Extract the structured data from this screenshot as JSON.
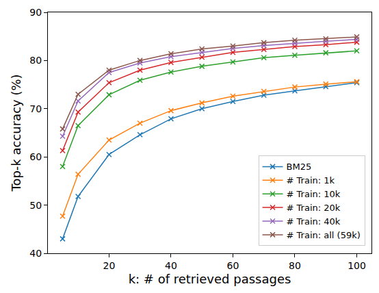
{
  "chart_data": {
    "type": "line",
    "x_label": "k: # of retrieved passages",
    "y_label": "Top-k accuracy (%)",
    "x": [
      5,
      10,
      20,
      30,
      40,
      50,
      60,
      70,
      80,
      90,
      100
    ],
    "series": [
      {
        "name": "BM25",
        "color": "#1f77b4",
        "values": [
          43.0,
          51.8,
          60.5,
          64.6,
          67.9,
          70.0,
          71.5,
          72.8,
          73.7,
          74.6,
          75.4
        ]
      },
      {
        "name": "# Train: 1k",
        "color": "#ff7f0e",
        "values": [
          47.7,
          56.4,
          63.5,
          67.0,
          69.6,
          71.2,
          72.6,
          73.6,
          74.5,
          75.1,
          75.6
        ]
      },
      {
        "name": "# Train: 10k",
        "color": "#2ca02c",
        "values": [
          58.0,
          66.5,
          72.9,
          75.9,
          77.6,
          78.8,
          79.7,
          80.6,
          81.1,
          81.6,
          82.0
        ]
      },
      {
        "name": "# Train: 20k",
        "color": "#d62728",
        "values": [
          61.3,
          69.3,
          75.4,
          78.0,
          79.6,
          80.7,
          81.7,
          82.3,
          82.9,
          83.3,
          83.8
        ]
      },
      {
        "name": "# Train: 40k",
        "color": "#9467bd",
        "values": [
          64.3,
          71.6,
          77.5,
          79.5,
          80.8,
          81.7,
          82.5,
          83.1,
          83.6,
          84.0,
          84.4
        ]
      },
      {
        "name": "# Train: all (59k)",
        "color": "#8c564b",
        "values": [
          65.8,
          73.0,
          78.0,
          80.0,
          81.4,
          82.4,
          83.0,
          83.7,
          84.2,
          84.5,
          84.9
        ]
      }
    ],
    "xlim": [
      0.25,
      104.75
    ],
    "xticks": [
      20,
      40,
      60,
      80,
      100
    ],
    "ylim": [
      40,
      90
    ],
    "yticks": [
      40,
      50,
      60,
      70,
      80,
      90
    ],
    "grid": false,
    "legend": "lower right",
    "marker": "x"
  }
}
